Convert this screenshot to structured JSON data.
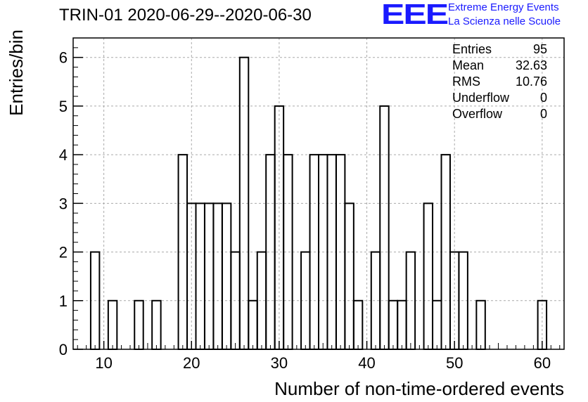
{
  "header": {
    "title": "TRIN-01 2020-06-29--2020-06-30",
    "logo_text": "EEE",
    "logo_line1": "Extreme Energy Events",
    "logo_line2": "La Scienza nelle Scuole",
    "accent_color": "#1a1aff"
  },
  "stats": {
    "entries_label": "Entries",
    "entries_value": "95",
    "mean_label": "Mean",
    "mean_value": "32.63",
    "rms_label": "RMS",
    "rms_value": "10.76",
    "underflow_label": "Underflow",
    "underflow_value": "0",
    "overflow_label": "Overflow",
    "overflow_value": "0"
  },
  "chart_data": {
    "type": "bar",
    "title": "TRIN-01 2020-06-29--2020-06-30",
    "xlabel": "Number of non-time-ordered events",
    "ylabel": "Entries/bin",
    "xlim": [
      6.5,
      62.5
    ],
    "ylim": [
      0,
      6.4
    ],
    "xticks": [
      10,
      20,
      30,
      40,
      50,
      60
    ],
    "yticks": [
      0,
      1,
      2,
      3,
      4,
      5,
      6
    ],
    "bin_width": 1,
    "grid": true,
    "bins": [
      {
        "x": 9,
        "count": 2
      },
      {
        "x": 11,
        "count": 1
      },
      {
        "x": 14,
        "count": 1
      },
      {
        "x": 16,
        "count": 1
      },
      {
        "x": 19,
        "count": 4
      },
      {
        "x": 20,
        "count": 3
      },
      {
        "x": 21,
        "count": 3
      },
      {
        "x": 22,
        "count": 3
      },
      {
        "x": 23,
        "count": 3
      },
      {
        "x": 24,
        "count": 3
      },
      {
        "x": 25,
        "count": 2
      },
      {
        "x": 26,
        "count": 6
      },
      {
        "x": 27,
        "count": 1
      },
      {
        "x": 28,
        "count": 2
      },
      {
        "x": 29,
        "count": 4
      },
      {
        "x": 30,
        "count": 5
      },
      {
        "x": 31,
        "count": 4
      },
      {
        "x": 33,
        "count": 2
      },
      {
        "x": 34,
        "count": 4
      },
      {
        "x": 35,
        "count": 4
      },
      {
        "x": 36,
        "count": 4
      },
      {
        "x": 37,
        "count": 4
      },
      {
        "x": 38,
        "count": 3
      },
      {
        "x": 39,
        "count": 1
      },
      {
        "x": 41,
        "count": 2
      },
      {
        "x": 42,
        "count": 5
      },
      {
        "x": 43,
        "count": 1
      },
      {
        "x": 44,
        "count": 1
      },
      {
        "x": 45,
        "count": 2
      },
      {
        "x": 47,
        "count": 3
      },
      {
        "x": 48,
        "count": 1
      },
      {
        "x": 49,
        "count": 4
      },
      {
        "x": 50,
        "count": 2
      },
      {
        "x": 51,
        "count": 2
      },
      {
        "x": 53,
        "count": 1
      },
      {
        "x": 60,
        "count": 1
      }
    ]
  }
}
